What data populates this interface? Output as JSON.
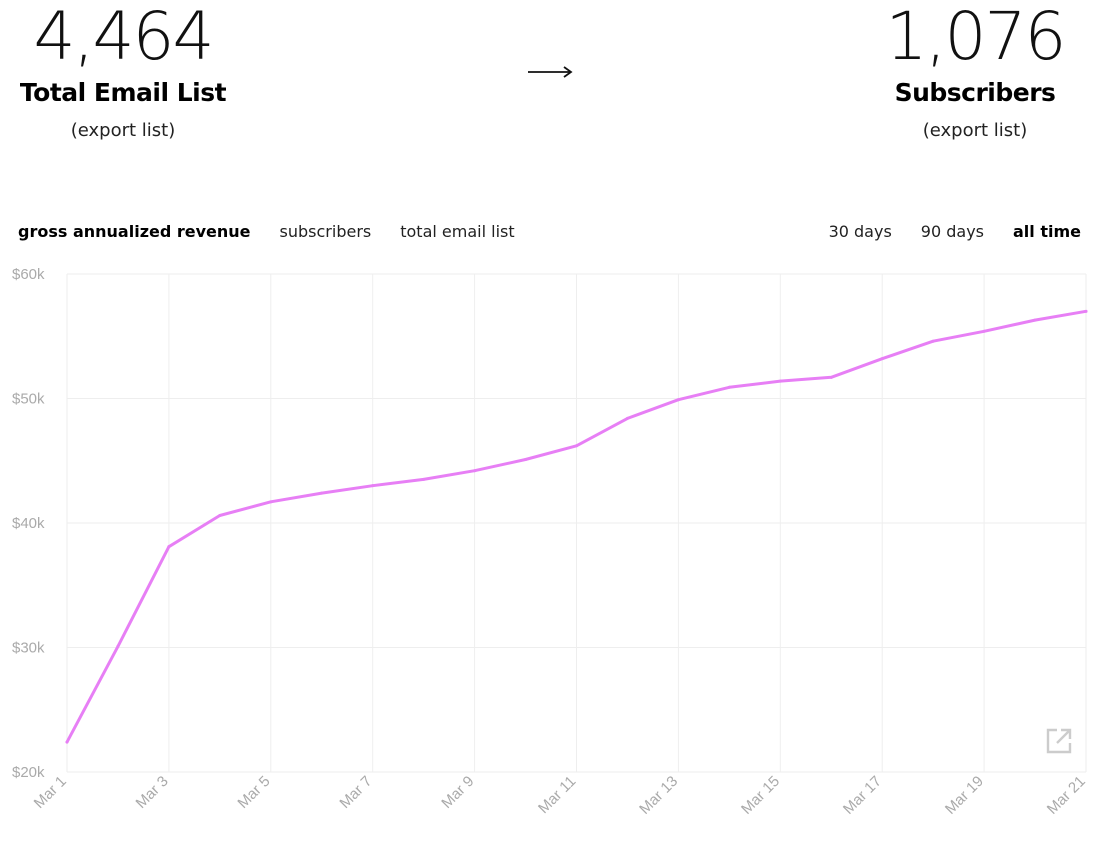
{
  "stats": {
    "left": {
      "value": "4,464",
      "label": "Total Email List",
      "export": "(export list)"
    },
    "right": {
      "value": "1,076",
      "label": "Subscribers",
      "export": "(export list)"
    }
  },
  "metric_tabs": [
    {
      "label": "gross annualized revenue",
      "active": true
    },
    {
      "label": "subscribers",
      "active": false
    },
    {
      "label": "total email list",
      "active": false
    }
  ],
  "range_tabs": [
    {
      "label": "30 days",
      "active": false
    },
    {
      "label": "90 days",
      "active": false
    },
    {
      "label": "all time",
      "active": true
    }
  ],
  "colors": {
    "line": "#e77ff5",
    "grid": "#eeeeee",
    "tick": "#aaaaaa",
    "icon": "#cccccc"
  },
  "icons": {
    "arrow": "long-right-arrow-icon",
    "open": "external-link-icon"
  },
  "chart_data": {
    "type": "line",
    "x": [
      "Mar 1",
      "Mar 2",
      "Mar 3",
      "Mar 4",
      "Mar 5",
      "Mar 6",
      "Mar 7",
      "Mar 8",
      "Mar 9",
      "Mar 10",
      "Mar 11",
      "Mar 12",
      "Mar 13",
      "Mar 14",
      "Mar 15",
      "Mar 16",
      "Mar 17",
      "Mar 18",
      "Mar 19",
      "Mar 20",
      "Mar 21"
    ],
    "x_tick_labels": [
      "Mar 1",
      "Mar 3",
      "Mar 5",
      "Mar 7",
      "Mar 9",
      "Mar 11",
      "Mar 13",
      "Mar 15",
      "Mar 17",
      "Mar 19",
      "Mar 21"
    ],
    "series": [
      {
        "values": [
          22400,
          30100,
          38100,
          40600,
          41700,
          42400,
          43000,
          43500,
          44200,
          45100,
          46200,
          48400,
          49900,
          50900,
          51400,
          51700,
          53200,
          54600,
          55400,
          56300,
          57000
        ]
      }
    ],
    "ylim": [
      20000,
      60000
    ],
    "y_ticks": [
      20000,
      30000,
      40000,
      50000,
      60000
    ],
    "y_tick_labels": [
      "$20k",
      "$30k",
      "$40k",
      "$50k",
      "$60k"
    ],
    "grid": true,
    "title": "",
    "xlabel": "",
    "ylabel": ""
  }
}
